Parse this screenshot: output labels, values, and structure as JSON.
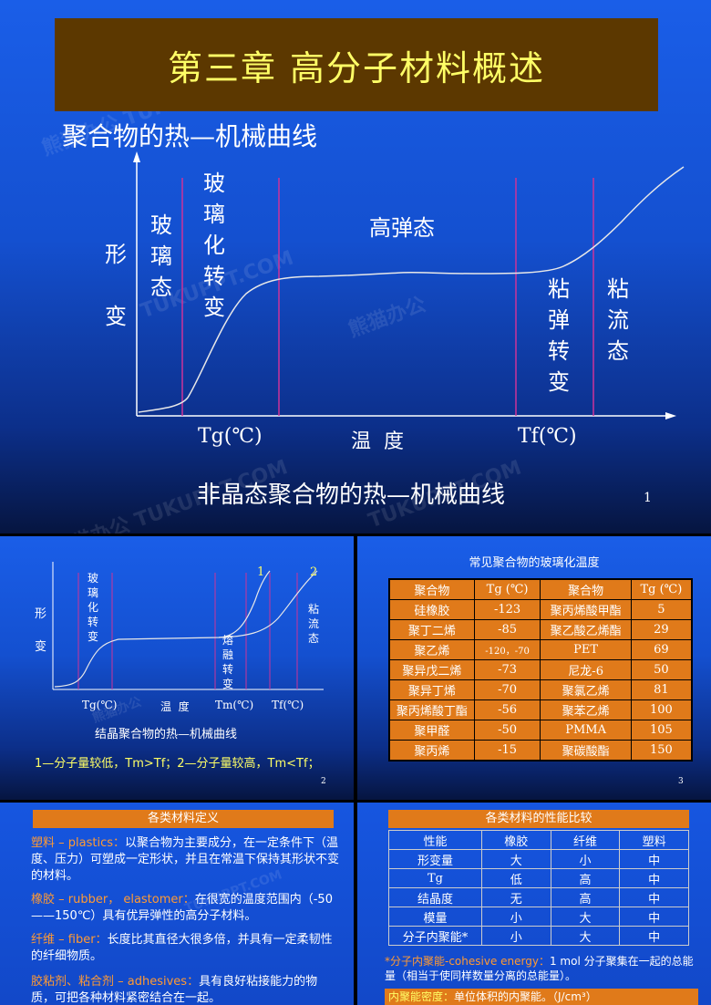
{
  "slide1": {
    "title": "第三章  高分子材料概述",
    "subtitle": "聚合物的热—机械曲线",
    "y_label": "形变",
    "y_label_chars": [
      "形",
      "变"
    ],
    "regions": {
      "glass": [
        "玻",
        "璃",
        "态"
      ],
      "glass_transition": [
        "玻",
        "璃",
        "化",
        "转",
        "变"
      ],
      "high_elastic": "高弹态",
      "viscoelastic_transition": [
        "粘",
        "弹",
        "转",
        "变"
      ],
      "viscous_flow": [
        "粘",
        "流",
        "态"
      ]
    },
    "x_labels": {
      "tg": "Tg(℃)",
      "temp": "温  度",
      "tf": "Tf(℃)"
    },
    "caption": "非晶态聚合物的热—机械曲线",
    "page": "1"
  },
  "slide2": {
    "y_label_chars": [
      "形",
      "变"
    ],
    "glass_transition": [
      "玻",
      "璃",
      "化",
      "转",
      "变"
    ],
    "melt_transition": [
      "熔",
      "融",
      "转",
      "变"
    ],
    "viscous_flow": [
      "粘",
      "流",
      "态"
    ],
    "curve_labels": [
      "1",
      "2"
    ],
    "x_labels": {
      "tg": "Tg(℃)",
      "temp": "温  度",
      "tm": "Tm(℃)",
      "tf": "Tf(℃)"
    },
    "caption": "结晶聚合物的热—机械曲线",
    "note": "1—分子量较低，Tm>Tf；2—分子量较高，Tm<Tf；",
    "page": "2"
  },
  "slide3": {
    "title": "常见聚合物的玻璃化温度",
    "headers": [
      "聚合物",
      "Tg (℃)",
      "聚合物",
      "Tg (℃)"
    ],
    "rows": [
      [
        "硅橡胶",
        "-123",
        "聚丙烯酸甲酯",
        "5"
      ],
      [
        "聚丁二烯",
        "-85",
        "聚乙酸乙烯酯",
        "29"
      ],
      [
        "聚乙烯",
        "-120，-70",
        "PET",
        "69"
      ],
      [
        "聚异戊二烯",
        "-73",
        "尼龙-6",
        "50"
      ],
      [
        "聚异丁烯",
        "-70",
        "聚氯乙烯",
        "81"
      ],
      [
        "聚丙烯酸丁酯",
        "-56",
        "聚苯乙烯",
        "100"
      ],
      [
        "聚甲醛",
        "-50",
        "PMMA",
        "105"
      ],
      [
        "聚丙烯",
        "-15",
        "聚碳酸酯",
        "150"
      ]
    ],
    "page": "3"
  },
  "slide4": {
    "title": "各类材料定义",
    "items": [
      {
        "term": "塑料 – plastics：",
        "text": "以聚合物为主要成分，在一定条件下（温度、压力）可塑成一定形状，并且在常温下保持其形状不变的材料。"
      },
      {
        "term": "橡胶 – rubber， elastomer：",
        "text": "在很宽的温度范围内（-50——150℃）具有优异弹性的高分子材料。"
      },
      {
        "term": "纤维 – fiber：",
        "text": "长度比其直径大很多倍，并具有一定柔韧性的纤细物质。"
      },
      {
        "term": "胶粘剂、粘合剂 – adhesives：",
        "text": "具有良好粘接能力的物质，可把各种材料紧密结合在一起。"
      }
    ]
  },
  "slide5": {
    "title": "各类材料的性能比较",
    "headers": [
      "性能",
      "橡胶",
      "纤维",
      "塑料"
    ],
    "rows": [
      [
        "形变量",
        "大",
        "小",
        "中"
      ],
      [
        "Tg",
        "低",
        "高",
        "中"
      ],
      [
        "结晶度",
        "无",
        "高",
        "中"
      ],
      [
        "模量",
        "小",
        "大",
        "中"
      ],
      [
        "分子内聚能*",
        "小",
        "大",
        "中"
      ]
    ],
    "footnote_term": "*分子内聚能-cohesive energy：",
    "footnote_text": "1 mol 分子聚集在一起的总能量（相当于使同样数量分离的总能量）。",
    "density_term": "内聚能密度：",
    "density_text": "单位体积的内聚能。（J/cm³）"
  },
  "watermarks": [
    "熊猫办公 TUKUPPT",
    "TUKUPPT.COM",
    "熊猫办公",
    "熊猫办公 TUKUPPT.COM"
  ],
  "colors": {
    "title_bg": "#5c3800",
    "title_text": "#ffff66",
    "divider": "#cc3399",
    "table_bg": "#e07a1a",
    "accent": "#ff9a33"
  }
}
